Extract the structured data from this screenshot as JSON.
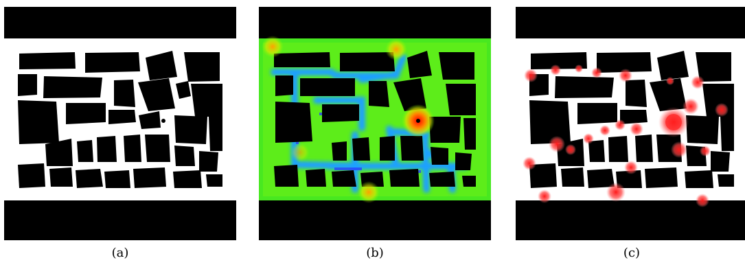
{
  "panels": [
    {
      "id": "a",
      "label": "(a)",
      "kind": "binary_map"
    },
    {
      "id": "b",
      "label": "(b)",
      "kind": "density_heatmap",
      "colormap": "jet"
    },
    {
      "id": "c",
      "label": "(c)",
      "kind": "annotated_map",
      "marker_color": "#ff0000"
    }
  ],
  "colors": {
    "obstacle": "#000000",
    "free_space": "#ffffff",
    "hotspot": "#ff1a1a"
  }
}
